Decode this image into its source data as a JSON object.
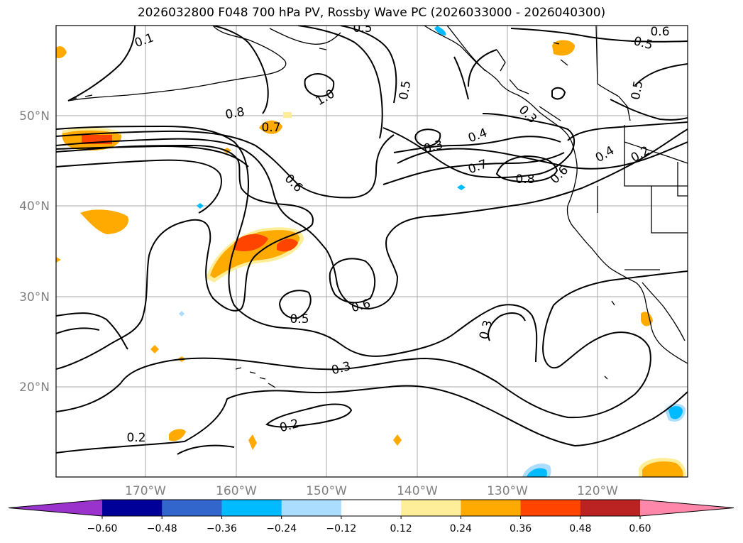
{
  "title": "2026032800 F048 700 hPa PV, Rossby Wave PC (2026033000 - 2026040300)",
  "lat_labels": [
    "20°N",
    "30°N",
    "40°N",
    "50°N"
  ],
  "lon_labels": [
    "170°W",
    "160°W",
    "150°W",
    "140°W",
    "130°W",
    "120°W"
  ],
  "contour_labels": [
    "0.1",
    "0.5",
    "0.6",
    "0.5",
    "0.5",
    "1.0",
    "0.5",
    "0.8",
    "0.7",
    "0.3",
    "0.4",
    "0.3",
    "0.7",
    "0.8",
    "0.6",
    "0.4",
    "0.2",
    "0.6",
    "0.6",
    "0.5",
    "0.3",
    "0.3",
    "0.2",
    "0.2"
  ],
  "colorbar": {
    "ticks": [
      "−0.60",
      "−0.48",
      "−0.36",
      "−0.24",
      "−0.12",
      "0.12",
      "0.24",
      "0.36",
      "0.48",
      "0.60"
    ],
    "colors": [
      "#9933cc",
      "#000099",
      "#3366cc",
      "#00bbff",
      "#aaddff",
      "#ffffff",
      "#ffee99",
      "#ffaa00",
      "#ff4400",
      "#bb2222",
      "#ff88aa"
    ]
  }
}
